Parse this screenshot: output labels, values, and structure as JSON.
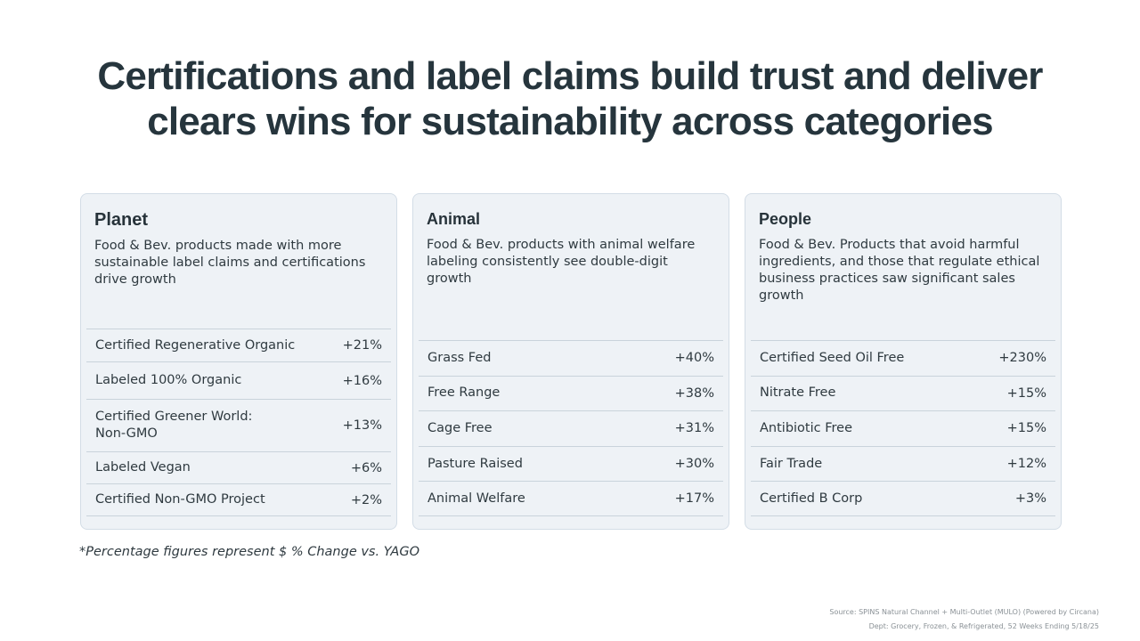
{
  "title": "Certifications and label claims build trust and deliver clears wins for sustainability across categories",
  "cards": [
    {
      "title": "Planet",
      "description": "Food & Bev. products made with more sustainable label claims and certifications drive growth",
      "rows": [
        {
          "label": "Certified Regenerative Organic",
          "value": "+21%"
        },
        {
          "label": "Labeled 100% Organic",
          "value": "+16%"
        },
        {
          "label": "Certified Greener World: Non-GMO",
          "value": "+13%"
        },
        {
          "label": "Labeled Vegan",
          "value": "+6%"
        },
        {
          "label": "Certified Non-GMO Project",
          "value": "+2%"
        }
      ]
    },
    {
      "title": "Animal",
      "description": "Food & Bev. products with animal welfare labeling consistently see double-digit growth",
      "rows": [
        {
          "label": "Grass Fed",
          "value": "+40%"
        },
        {
          "label": "Free Range",
          "value": "+38%"
        },
        {
          "label": "Cage Free",
          "value": "+31%"
        },
        {
          "label": "Pasture Raised",
          "value": "+30%"
        },
        {
          "label": "Animal Welfare",
          "value": "+17%"
        }
      ]
    },
    {
      "title": "People",
      "description": "Food & Bev. Products that avoid harmful ingredients, and those that regulate ethical business practices saw significant sales growth",
      "rows": [
        {
          "label": "Certified Seed Oil Free",
          "value": "+230%"
        },
        {
          "label": "Nitrate Free",
          "value": "+15%"
        },
        {
          "label": "Antibiotic Free",
          "value": "+15%"
        },
        {
          "label": "Fair Trade",
          "value": "+12%"
        },
        {
          "label": "Certified B Corp",
          "value": "+3%"
        }
      ]
    }
  ],
  "footnote": "*Percentage figures represent $ % Change vs. YAGO",
  "source": {
    "line1": "Source: SPINS Natural Channel + Multi-Outlet (MULO) (Powered by Circana)",
    "line2": "Dept: Grocery, Frozen, &  Refrigerated, 52 Weeks Ending 5/18/25"
  }
}
